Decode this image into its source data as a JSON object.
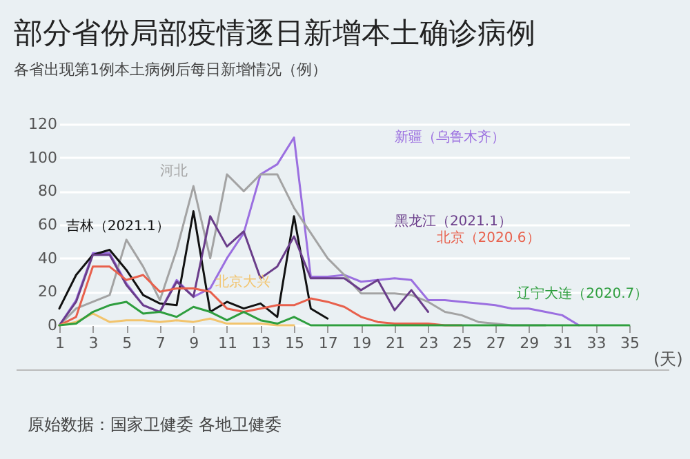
{
  "chart_data": {
    "type": "line",
    "title": "部分省份局部疫情逐日新增本土确诊病例",
    "subtitle": "各省出现第1例本土病例后每日新增情况（例）",
    "xlabel": "(天)",
    "x": [
      1,
      2,
      3,
      4,
      5,
      6,
      7,
      8,
      9,
      10,
      11,
      12,
      13,
      14,
      15,
      16,
      17,
      18,
      19,
      20,
      21,
      22,
      23,
      24,
      25,
      26,
      27,
      28,
      29,
      30,
      31,
      32,
      33,
      34,
      35
    ],
    "xlim": [
      1,
      35
    ],
    "xticks": [
      1,
      3,
      5,
      7,
      9,
      11,
      13,
      15,
      17,
      19,
      21,
      23,
      25,
      27,
      29,
      31,
      33,
      35
    ],
    "ylim": [
      0,
      120
    ],
    "yticks": [
      0,
      20,
      40,
      60,
      80,
      100,
      120
    ],
    "grid": "y",
    "legend": false,
    "marker": "none",
    "line_style": "solid",
    "series": [
      {
        "name": "新疆（乌鲁木齐）",
        "color": "#9b6fe0",
        "values": [
          0,
          15,
          43,
          43,
          25,
          12,
          8,
          27,
          17,
          22,
          40,
          55,
          90,
          96,
          112,
          29,
          29,
          30,
          26,
          27,
          28,
          27,
          15,
          15,
          14,
          13,
          12,
          10,
          10,
          8,
          6,
          0,
          null,
          null,
          null
        ]
      },
      {
        "name": "河北",
        "color": "#a3a3a3",
        "values": [
          0,
          10,
          14,
          18,
          51,
          35,
          15,
          45,
          83,
          40,
          90,
          80,
          90,
          90,
          70,
          55,
          40,
          30,
          19,
          19,
          19,
          18,
          14,
          8,
          6,
          2,
          1,
          0,
          0,
          0,
          null,
          null,
          null,
          null,
          null
        ]
      },
      {
        "name": "吉林（2021.1）",
        "color": "#111111",
        "values": [
          10,
          30,
          42,
          45,
          33,
          18,
          13,
          12,
          68,
          8,
          14,
          10,
          13,
          5,
          65,
          10,
          4,
          null,
          null,
          null,
          null,
          null,
          null,
          null,
          null,
          null,
          null,
          null,
          null,
          null,
          null,
          null,
          null,
          null,
          null
        ]
      },
      {
        "name": "黑龙江（2021.1）",
        "color": "#6a3d8a",
        "values": [
          0,
          14,
          42,
          42,
          24,
          12,
          8,
          26,
          17,
          65,
          47,
          56,
          28,
          35,
          53,
          28,
          28,
          28,
          21,
          27,
          9,
          21,
          8,
          null,
          null,
          null,
          null,
          null,
          null,
          null,
          null,
          null,
          null,
          null,
          null
        ]
      },
      {
        "name": "北京（2020.6）",
        "color": "#e8604c",
        "values": [
          0,
          5,
          35,
          35,
          27,
          30,
          20,
          22,
          22,
          20,
          10,
          8,
          10,
          12,
          12,
          16,
          14,
          11,
          5,
          2,
          1,
          1,
          1,
          0,
          0,
          null,
          null,
          null,
          null,
          null,
          null,
          null,
          null,
          null,
          null
        ]
      },
      {
        "name": "北京大兴",
        "color": "#f2c46d",
        "values": [
          0,
          2,
          7,
          2,
          3,
          3,
          2,
          3,
          2,
          4,
          1,
          1,
          1,
          0,
          0,
          null,
          null,
          null,
          null,
          null,
          null,
          null,
          null,
          null,
          null,
          null,
          null,
          null,
          null,
          null,
          null,
          null,
          null,
          null,
          null
        ]
      },
      {
        "name": "辽宁大连（2020.7）",
        "color": "#2e9e3e",
        "values": [
          0,
          1,
          8,
          12,
          14,
          7,
          8,
          5,
          11,
          8,
          3,
          8,
          3,
          1,
          5,
          0,
          0,
          0,
          0,
          0,
          0,
          0,
          0,
          0,
          0,
          0,
          0,
          0,
          0,
          0,
          0,
          0,
          0,
          0,
          0
        ]
      }
    ],
    "annotations": [
      "原始数据：国家卫健委 各地卫健委"
    ]
  }
}
